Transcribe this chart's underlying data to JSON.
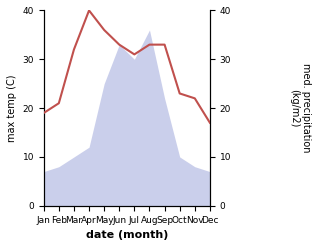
{
  "months": [
    "Jan",
    "Feb",
    "Mar",
    "Apr",
    "May",
    "Jun",
    "Jul",
    "Aug",
    "Sep",
    "Oct",
    "Nov",
    "Dec"
  ],
  "temperature": [
    19,
    21,
    32,
    40,
    36,
    33,
    31,
    33,
    33,
    23,
    22,
    17
  ],
  "precipitation": [
    7,
    8,
    10,
    12,
    25,
    33,
    30,
    36,
    22,
    10,
    8,
    7
  ],
  "temp_color": "#c0504d",
  "precip_color_fill": "#c5cae9",
  "ylabel_left": "max temp (C)",
  "ylabel_right": "med. precipitation\n(kg/m2)",
  "xlabel": "date (month)",
  "ylim": [
    0,
    40
  ],
  "yticks": [
    0,
    10,
    20,
    30,
    40
  ],
  "background_color": "#ffffff"
}
